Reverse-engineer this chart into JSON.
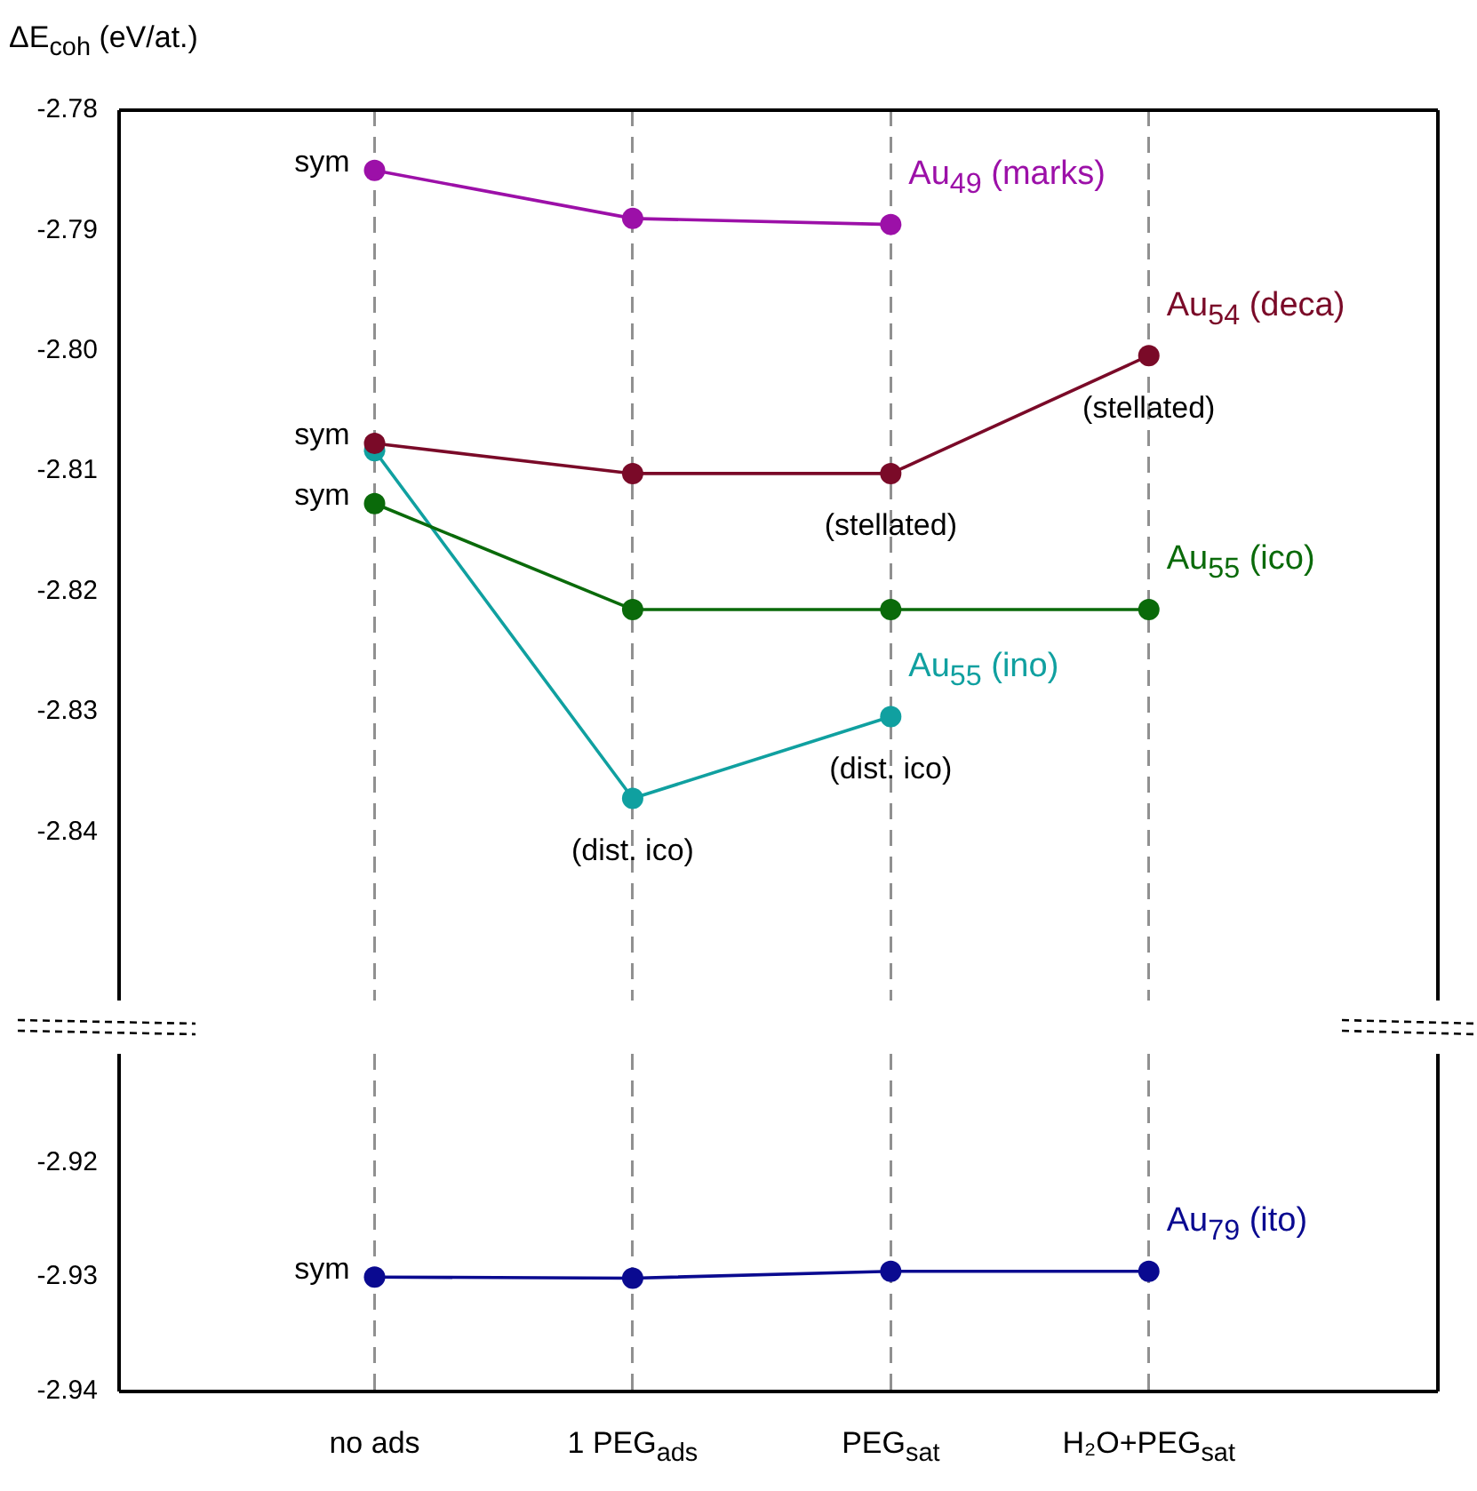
{
  "chart_data": [
    {
      "type": "line",
      "ylabel": "ΔE$_{coh}$ (eV/at.)",
      "categories": [
        "no ads",
        "1 PEG$_{ads}$",
        "PEG$_{sat}$",
        "H₂O+PEG$_{sat}$"
      ],
      "series": [
        {
          "name": "Au$_{49}$ (marks)",
          "color": "#9c10a8",
          "values": [
            -2.785,
            -2.789,
            -2.7895,
            null
          ]
        },
        {
          "name": "Au$_{54}$ (deca)",
          "color": "#7a0a28",
          "values": [
            -2.8077,
            -2.8102,
            -2.8102,
            -2.8004
          ]
        },
        {
          "name": "Au$_{55}$ (ico)",
          "color": "#0a6a0a",
          "values": [
            -2.8127,
            -2.8215,
            -2.8215,
            -2.8215
          ]
        },
        {
          "name": "Au$_{55}$ (ino)",
          "color": "#10a0a0",
          "values": [
            -2.8083,
            -2.8372,
            -2.8304,
            null
          ]
        }
      ],
      "ylim": [
        -2.854,
        -2.78
      ],
      "yticks": [
        -2.78,
        -2.79,
        {
          "value": -2.8,
          "label": "-2.80"
        },
        -2.81,
        -2.82,
        -2.83,
        -2.84
      ],
      "annotations": [
        {
          "text": "sym",
          "x": "no ads",
          "y": -2.785
        },
        {
          "text": "sym",
          "x": "no ads",
          "y": -2.8077
        },
        {
          "text": "sym",
          "x": "no ads",
          "y": -2.8127
        },
        {
          "text": "(stellated)",
          "x": "PEG$_{sat}$",
          "y": -2.8102
        },
        {
          "text": "(stellated)",
          "x": "H₂O+PEG$_{sat}$",
          "y": -2.8004
        },
        {
          "text": "(dist. ico)",
          "x": "1 PEG$_{ads}$",
          "y": -2.8372
        },
        {
          "text": "(dist. ico)",
          "x": "PEG$_{sat}$",
          "y": -2.8304
        }
      ],
      "grid": "x",
      "legend": false,
      "marker": "circle",
      "line_style": "solid",
      "tick_labels": "y"
    },
    {
      "type": "line",
      "categories": [
        "no ads",
        "1 PEG$_{ads}$",
        "PEG$_{sat}$",
        "H₂O+PEG$_{sat}$"
      ],
      "series": [
        {
          "name": "Au$_{79}$ (ito)",
          "color": "#0a0a90",
          "values": [
            -2.93,
            -2.9301,
            -2.9295,
            -2.9295
          ]
        }
      ],
      "ylim": [
        -2.94,
        -2.9105
      ],
      "yticks": [
        -2.92,
        -2.93,
        -2.94
      ],
      "annotations": [
        {
          "text": "sym",
          "x": "no ads",
          "y": -2.93
        }
      ],
      "grid": "x",
      "legend": false,
      "marker": "circle",
      "line_style": "solid"
    }
  ]
}
